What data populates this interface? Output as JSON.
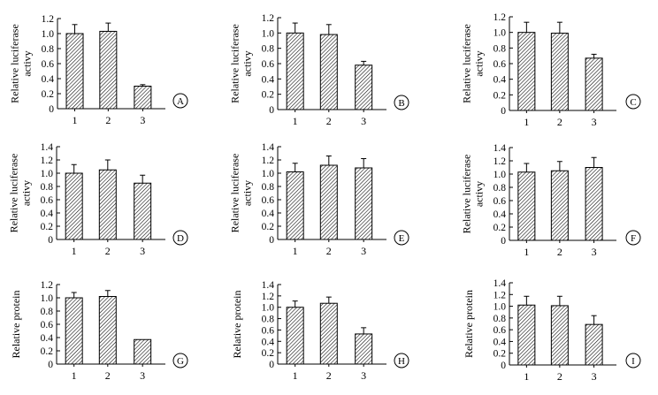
{
  "chart_data": [
    {
      "panel": "A",
      "type": "bar",
      "ylabel": "Relative luciferase activy",
      "categories": [
        "1",
        "2",
        "3"
      ],
      "values": [
        1.0,
        1.03,
        0.3
      ],
      "errors": [
        0.12,
        0.11,
        0.02
      ],
      "ylim": [
        0,
        1.2
      ],
      "yticks": [
        "0",
        "0.2",
        "0.4",
        "0.6",
        "0.8",
        "1.0",
        "1.2"
      ],
      "ytick_values": [
        0,
        0.2,
        0.4,
        0.6,
        0.8,
        1.0,
        1.2
      ]
    },
    {
      "panel": "B",
      "type": "bar",
      "ylabel": "Relative luciferase activy",
      "categories": [
        "1",
        "2",
        "3"
      ],
      "values": [
        1.0,
        0.98,
        0.58
      ],
      "errors": [
        0.13,
        0.13,
        0.05
      ],
      "ylim": [
        0,
        1.2
      ],
      "yticks": [
        "0",
        "0.2",
        "0.4",
        "0.6",
        "0.8",
        "1.0",
        "1.2"
      ],
      "ytick_values": [
        0,
        0.2,
        0.4,
        0.6,
        0.8,
        1.0,
        1.2
      ]
    },
    {
      "panel": "C",
      "type": "bar",
      "ylabel": "Relative luciferase activy",
      "categories": [
        "1",
        "2",
        "3"
      ],
      "values": [
        1.0,
        0.99,
        0.67
      ],
      "errors": [
        0.13,
        0.14,
        0.05
      ],
      "ylim": [
        0,
        1.2
      ],
      "yticks": [
        "0",
        "0.2",
        "0.4",
        "0.6",
        "0.8",
        "1.0",
        "1.2"
      ],
      "ytick_values": [
        0,
        0.2,
        0.4,
        0.6,
        0.8,
        1.0,
        1.2
      ]
    },
    {
      "panel": "D",
      "type": "bar",
      "ylabel": "Relative luciferase activy",
      "categories": [
        "1",
        "2",
        "3"
      ],
      "values": [
        1.0,
        1.05,
        0.85
      ],
      "errors": [
        0.13,
        0.15,
        0.12
      ],
      "ylim": [
        0,
        1.4
      ],
      "yticks": [
        "0",
        "0.2",
        "0.4",
        "0.6",
        "0.8",
        "1.0",
        "1.2",
        "1.4"
      ],
      "ytick_values": [
        0,
        0.2,
        0.4,
        0.6,
        0.8,
        1.0,
        1.2,
        1.4
      ]
    },
    {
      "panel": "E",
      "type": "bar",
      "ylabel": "Relative luciferase activy",
      "categories": [
        "1",
        "2",
        "3"
      ],
      "values": [
        1.02,
        1.12,
        1.08
      ],
      "errors": [
        0.13,
        0.14,
        0.14
      ],
      "ylim": [
        0,
        1.4
      ],
      "yticks": [
        "0",
        "0.2",
        "0.4",
        "0.6",
        "0.8",
        "1.0",
        "1.2",
        "1.4"
      ],
      "ytick_values": [
        0,
        0.2,
        0.4,
        0.6,
        0.8,
        1.0,
        1.2,
        1.4
      ]
    },
    {
      "panel": "F",
      "type": "bar",
      "ylabel": "Relative luciferase activy",
      "categories": [
        "1",
        "2",
        "3"
      ],
      "values": [
        1.03,
        1.05,
        1.1
      ],
      "errors": [
        0.13,
        0.14,
        0.15
      ],
      "ylim": [
        0,
        1.4
      ],
      "yticks": [
        "0",
        "0.2",
        "0.4",
        "0.6",
        "0.8",
        "1.0",
        "1.2",
        "1.4"
      ],
      "ytick_values": [
        0,
        0.2,
        0.4,
        0.6,
        0.8,
        1.0,
        1.2,
        1.4
      ]
    },
    {
      "panel": "G",
      "type": "bar",
      "ylabel": "Relative protein",
      "categories": [
        "1",
        "2",
        "3"
      ],
      "values": [
        1.0,
        1.02,
        0.37
      ],
      "errors": [
        0.08,
        0.09,
        0.0
      ],
      "ylim": [
        0,
        1.2
      ],
      "yticks": [
        "0",
        "0.2",
        "0.4",
        "0.6",
        "0.8",
        "1.0",
        "1.2"
      ],
      "ytick_values": [
        0,
        0.2,
        0.4,
        0.6,
        0.8,
        1.0,
        1.2
      ]
    },
    {
      "panel": "H",
      "type": "bar",
      "ylabel": "Relative protein",
      "categories": [
        "1",
        "2",
        "3"
      ],
      "values": [
        1.0,
        1.07,
        0.53
      ],
      "errors": [
        0.11,
        0.11,
        0.11
      ],
      "ylim": [
        0,
        1.4
      ],
      "yticks": [
        "0",
        "0.2",
        "0.4",
        "0.6",
        "0.8",
        "1.0",
        "1.2",
        "1.4"
      ],
      "ytick_values": [
        0,
        0.2,
        0.4,
        0.6,
        0.8,
        1.0,
        1.2,
        1.4
      ]
    },
    {
      "panel": "I",
      "type": "bar",
      "ylabel": "Relative protein",
      "categories": [
        "1",
        "2",
        "3"
      ],
      "values": [
        1.02,
        1.01,
        0.69
      ],
      "errors": [
        0.15,
        0.16,
        0.15
      ],
      "ylim": [
        0,
        1.4
      ],
      "yticks": [
        "0",
        "0.2",
        "0.4",
        "0.6",
        "0.8",
        "1.0",
        "1.2",
        "1.4"
      ],
      "ytick_values": [
        0,
        0.2,
        0.4,
        0.6,
        0.8,
        1.0,
        1.2,
        1.4
      ]
    }
  ],
  "colors": {
    "bar_fill": "#ffffff",
    "hatch": "#000000",
    "axis": "#000000"
  }
}
